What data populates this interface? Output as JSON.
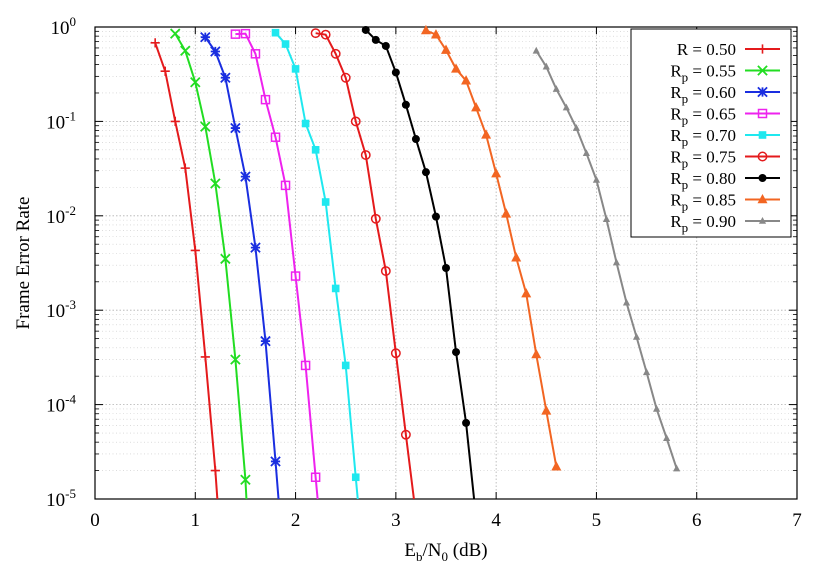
{
  "chart_data": {
    "type": "line",
    "title": "",
    "xlabel": {
      "base": "E",
      "sub1": "b",
      "mid": "/N",
      "sub2": "0",
      "tail": " (dB)"
    },
    "ylabel": "Frame Error Rate",
    "xlim": [
      0,
      7
    ],
    "ylim": [
      1e-05,
      1
    ],
    "y_scale": "log",
    "grid": true,
    "legend_position": "top-right",
    "x_ticks": [
      "0",
      "1",
      "2",
      "3",
      "4",
      "5",
      "6",
      "7"
    ],
    "y_ticks": [
      {
        "value": 1,
        "base": "10",
        "exp": "0"
      },
      {
        "value": 0.1,
        "base": "10",
        "exp": "-1"
      },
      {
        "value": 0.01,
        "base": "10",
        "exp": "-2"
      },
      {
        "value": 0.001,
        "base": "10",
        "exp": "-3"
      },
      {
        "value": 0.0001,
        "base": "10",
        "exp": "-4"
      },
      {
        "value": 1e-05,
        "base": "10",
        "exp": "-5"
      }
    ],
    "series": [
      {
        "name": "R = 0.50",
        "label": {
          "main": "R",
          "sub": "",
          "value": " = 0.50"
        },
        "color": "#e41a1c",
        "marker": "plus",
        "x": [
          0.6,
          0.7,
          0.8,
          0.9,
          1.0,
          1.1,
          1.2,
          1.22
        ],
        "y": [
          0.68,
          0.34,
          0.1,
          0.032,
          0.0043,
          0.00032,
          2e-05,
          1e-05
        ]
      },
      {
        "name": "Rp = 0.55",
        "label": {
          "main": "R",
          "sub": "p",
          "value": " = 0.55"
        },
        "color": "#22dd22",
        "marker": "x",
        "x": [
          0.8,
          0.9,
          1.0,
          1.1,
          1.2,
          1.3,
          1.4,
          1.5,
          1.51
        ],
        "y": [
          0.85,
          0.56,
          0.26,
          0.088,
          0.022,
          0.0035,
          0.0003,
          1.6e-05,
          1e-05
        ]
      },
      {
        "name": "Rp = 0.60",
        "label": {
          "main": "R",
          "sub": "p",
          "value": " = 0.60"
        },
        "color": "#1a2ee0",
        "marker": "star",
        "x": [
          1.1,
          1.2,
          1.3,
          1.4,
          1.5,
          1.6,
          1.7,
          1.8,
          1.83
        ],
        "y": [
          0.78,
          0.55,
          0.29,
          0.085,
          0.026,
          0.0046,
          0.00047,
          2.5e-05,
          1e-05
        ]
      },
      {
        "name": "Rp = 0.65",
        "label": {
          "main": "R",
          "sub": "p",
          "value": " = 0.65"
        },
        "color": "#ee22ee",
        "marker": "square",
        "x": [
          1.4,
          1.5,
          1.6,
          1.7,
          1.8,
          1.9,
          2.0,
          2.1,
          2.2,
          2.22
        ],
        "y": [
          0.84,
          0.85,
          0.52,
          0.17,
          0.068,
          0.021,
          0.0023,
          0.00026,
          1.7e-05,
          1e-05
        ]
      },
      {
        "name": "Rp = 0.70",
        "label": {
          "main": "R",
          "sub": "p",
          "value": " = 0.70"
        },
        "color": "#1fe8ef",
        "marker": "filled-square",
        "x": [
          1.8,
          1.9,
          2.0,
          2.1,
          2.2,
          2.3,
          2.4,
          2.5,
          2.6,
          2.62
        ],
        "y": [
          0.87,
          0.66,
          0.36,
          0.095,
          0.05,
          0.014,
          0.0017,
          0.00026,
          1.7e-05,
          1e-05
        ]
      },
      {
        "name": "Rp = 0.75",
        "label": {
          "main": "R",
          "sub": "p",
          "value": " = 0.75"
        },
        "color": "#e41a1c",
        "marker": "circle",
        "x": [
          2.2,
          2.3,
          2.4,
          2.5,
          2.6,
          2.7,
          2.8,
          2.9,
          3.0,
          3.1,
          3.18
        ],
        "y": [
          0.86,
          0.83,
          0.52,
          0.29,
          0.1,
          0.044,
          0.0093,
          0.0026,
          0.00035,
          4.8e-05,
          1e-05
        ]
      },
      {
        "name": "Rp = 0.80",
        "label": {
          "main": "R",
          "sub": "p",
          "value": " = 0.80"
        },
        "color": "#000000",
        "marker": "filled-circle",
        "x": [
          2.7,
          2.8,
          2.9,
          3.0,
          3.1,
          3.2,
          3.3,
          3.4,
          3.5,
          3.6,
          3.7,
          3.78
        ],
        "y": [
          0.93,
          0.73,
          0.63,
          0.33,
          0.15,
          0.065,
          0.029,
          0.0098,
          0.0028,
          0.00036,
          6.4e-05,
          1e-05
        ]
      },
      {
        "name": "Rp = 0.85",
        "label": {
          "main": "R",
          "sub": "p",
          "value": " = 0.85"
        },
        "color": "#f26522",
        "marker": "filled-triangle",
        "x": [
          3.3,
          3.4,
          3.5,
          3.6,
          3.7,
          3.8,
          3.9,
          4.0,
          4.1,
          4.2,
          4.3,
          4.4,
          4.5,
          4.6
        ],
        "y": [
          0.92,
          0.83,
          0.57,
          0.36,
          0.27,
          0.14,
          0.072,
          0.028,
          0.0105,
          0.0036,
          0.0015,
          0.00034,
          8.6e-05,
          2.2e-05
        ]
      },
      {
        "name": "Rp = 0.90",
        "label": {
          "main": "R",
          "sub": "p",
          "value": " = 0.90"
        },
        "color": "#888888",
        "marker": "small-triangle",
        "x": [
          4.4,
          4.5,
          4.6,
          4.7,
          4.8,
          4.9,
          5.0,
          5.1,
          5.2,
          5.3,
          5.4,
          5.5,
          5.6,
          5.7,
          5.8
        ],
        "y": [
          0.56,
          0.38,
          0.22,
          0.14,
          0.085,
          0.046,
          0.024,
          0.0092,
          0.0032,
          0.0012,
          0.00052,
          0.00022,
          9e-05,
          4.4e-05,
          2.1e-05
        ]
      }
    ]
  }
}
